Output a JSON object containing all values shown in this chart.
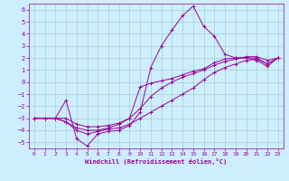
{
  "xlabel": "Windchill (Refroidissement éolien,°C)",
  "bg_color": "#cceeff",
  "grid_color": "#aacccc",
  "line_color": "#990099",
  "xlim": [
    -0.5,
    23.5
  ],
  "ylim": [
    -5.5,
    6.5
  ],
  "xticks": [
    0,
    1,
    2,
    3,
    4,
    5,
    6,
    7,
    8,
    9,
    10,
    11,
    12,
    13,
    14,
    15,
    16,
    17,
    18,
    19,
    20,
    21,
    22,
    23
  ],
  "yticks": [
    -5,
    -4,
    -3,
    -2,
    -1,
    0,
    1,
    2,
    3,
    4,
    5,
    6
  ],
  "line1_x": [
    0,
    1,
    2,
    3,
    4,
    5,
    6,
    7,
    8,
    9,
    10,
    11,
    12,
    13,
    14,
    15,
    16,
    17,
    18,
    19,
    20,
    21,
    22,
    23
  ],
  "line1_y": [
    -3.0,
    -3.0,
    -3.0,
    -3.3,
    -4.0,
    -4.3,
    -4.1,
    -3.9,
    -3.8,
    -3.5,
    -3.0,
    -2.5,
    -2.0,
    -1.5,
    -1.0,
    -0.5,
    0.2,
    0.8,
    1.2,
    1.5,
    1.8,
    1.9,
    1.5,
    2.0
  ],
  "line2_x": [
    0,
    1,
    2,
    3,
    4,
    5,
    6,
    7,
    8,
    9,
    10,
    11,
    12,
    13,
    14,
    15,
    16,
    17,
    18,
    19,
    20,
    21,
    22,
    23
  ],
  "line2_y": [
    -3.0,
    -3.0,
    -3.0,
    -1.5,
    -4.7,
    -5.3,
    -4.3,
    -4.1,
    -4.0,
    -3.6,
    -2.5,
    1.2,
    3.0,
    4.3,
    5.5,
    6.3,
    4.6,
    3.8,
    2.3,
    2.0,
    2.0,
    1.8,
    1.3,
    2.0
  ],
  "line3_x": [
    0,
    1,
    2,
    3,
    4,
    5,
    6,
    7,
    8,
    9,
    10,
    11,
    12,
    13,
    14,
    15,
    16,
    17,
    18,
    19,
    20,
    21,
    22,
    23
  ],
  "line3_y": [
    -3.0,
    -3.0,
    -3.0,
    -3.3,
    -3.8,
    -4.0,
    -4.0,
    -3.8,
    -3.5,
    -3.0,
    -0.4,
    -0.1,
    0.1,
    0.3,
    0.6,
    0.9,
    1.1,
    1.6,
    1.9,
    2.0,
    2.0,
    2.0,
    1.5,
    2.0
  ],
  "line4_x": [
    0,
    1,
    2,
    3,
    4,
    5,
    6,
    7,
    8,
    9,
    10,
    11,
    12,
    13,
    14,
    15,
    16,
    17,
    18,
    19,
    20,
    21,
    22,
    23
  ],
  "line4_y": [
    -3.0,
    -3.0,
    -3.0,
    -3.0,
    -3.5,
    -3.7,
    -3.7,
    -3.6,
    -3.4,
    -3.0,
    -2.2,
    -1.2,
    -0.5,
    0.0,
    0.4,
    0.7,
    1.0,
    1.4,
    1.7,
    1.9,
    2.1,
    2.1,
    1.8,
    2.0
  ]
}
